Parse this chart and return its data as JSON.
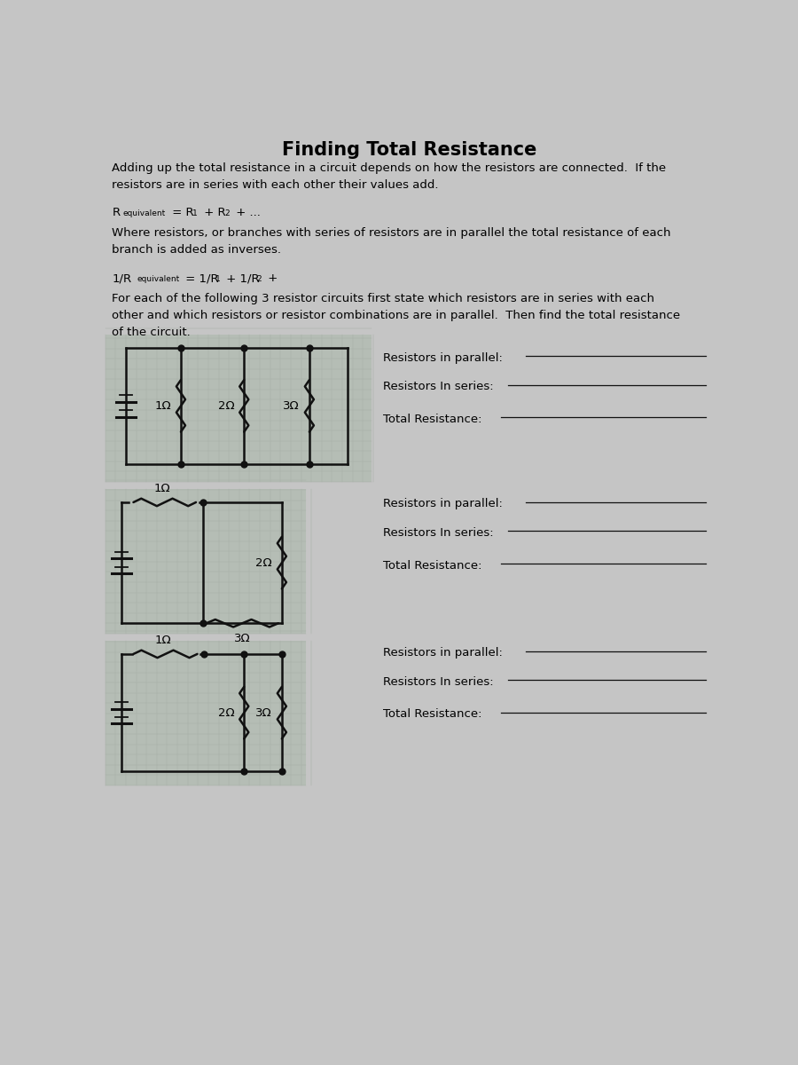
{
  "title": "Finding Total Resistance",
  "bg_color": "#c5c5c5",
  "circuit_bg_color": "#b5bdb5",
  "grid_color": "#a8b0a8",
  "text_color": "#000000",
  "para1": "Adding up the total resistance in a circuit depends on how the resistors are connected.  If the\nresistors are in series with each other their values add.",
  "para2": "Where resistors, or branches with series of resistors are in parallel the total resistance of each\nbranch is added as inverses.",
  "para3": "For each of the following 3 resistor circuits first state which resistors are in series with each\nother and which resistors or resistor combinations are in parallel.  Then find the total resistance\nof the circuit.",
  "label_parallel": "Resistors in parallel:",
  "label_series": "Resistors In series:",
  "label_total": "Total Resistance:",
  "line_color": "#111111",
  "resistor_color": "#111111",
  "dot_color": "#111111",
  "title_fontsize": 15,
  "body_fontsize": 9.5,
  "formula_sub_fontsize": 6.5
}
